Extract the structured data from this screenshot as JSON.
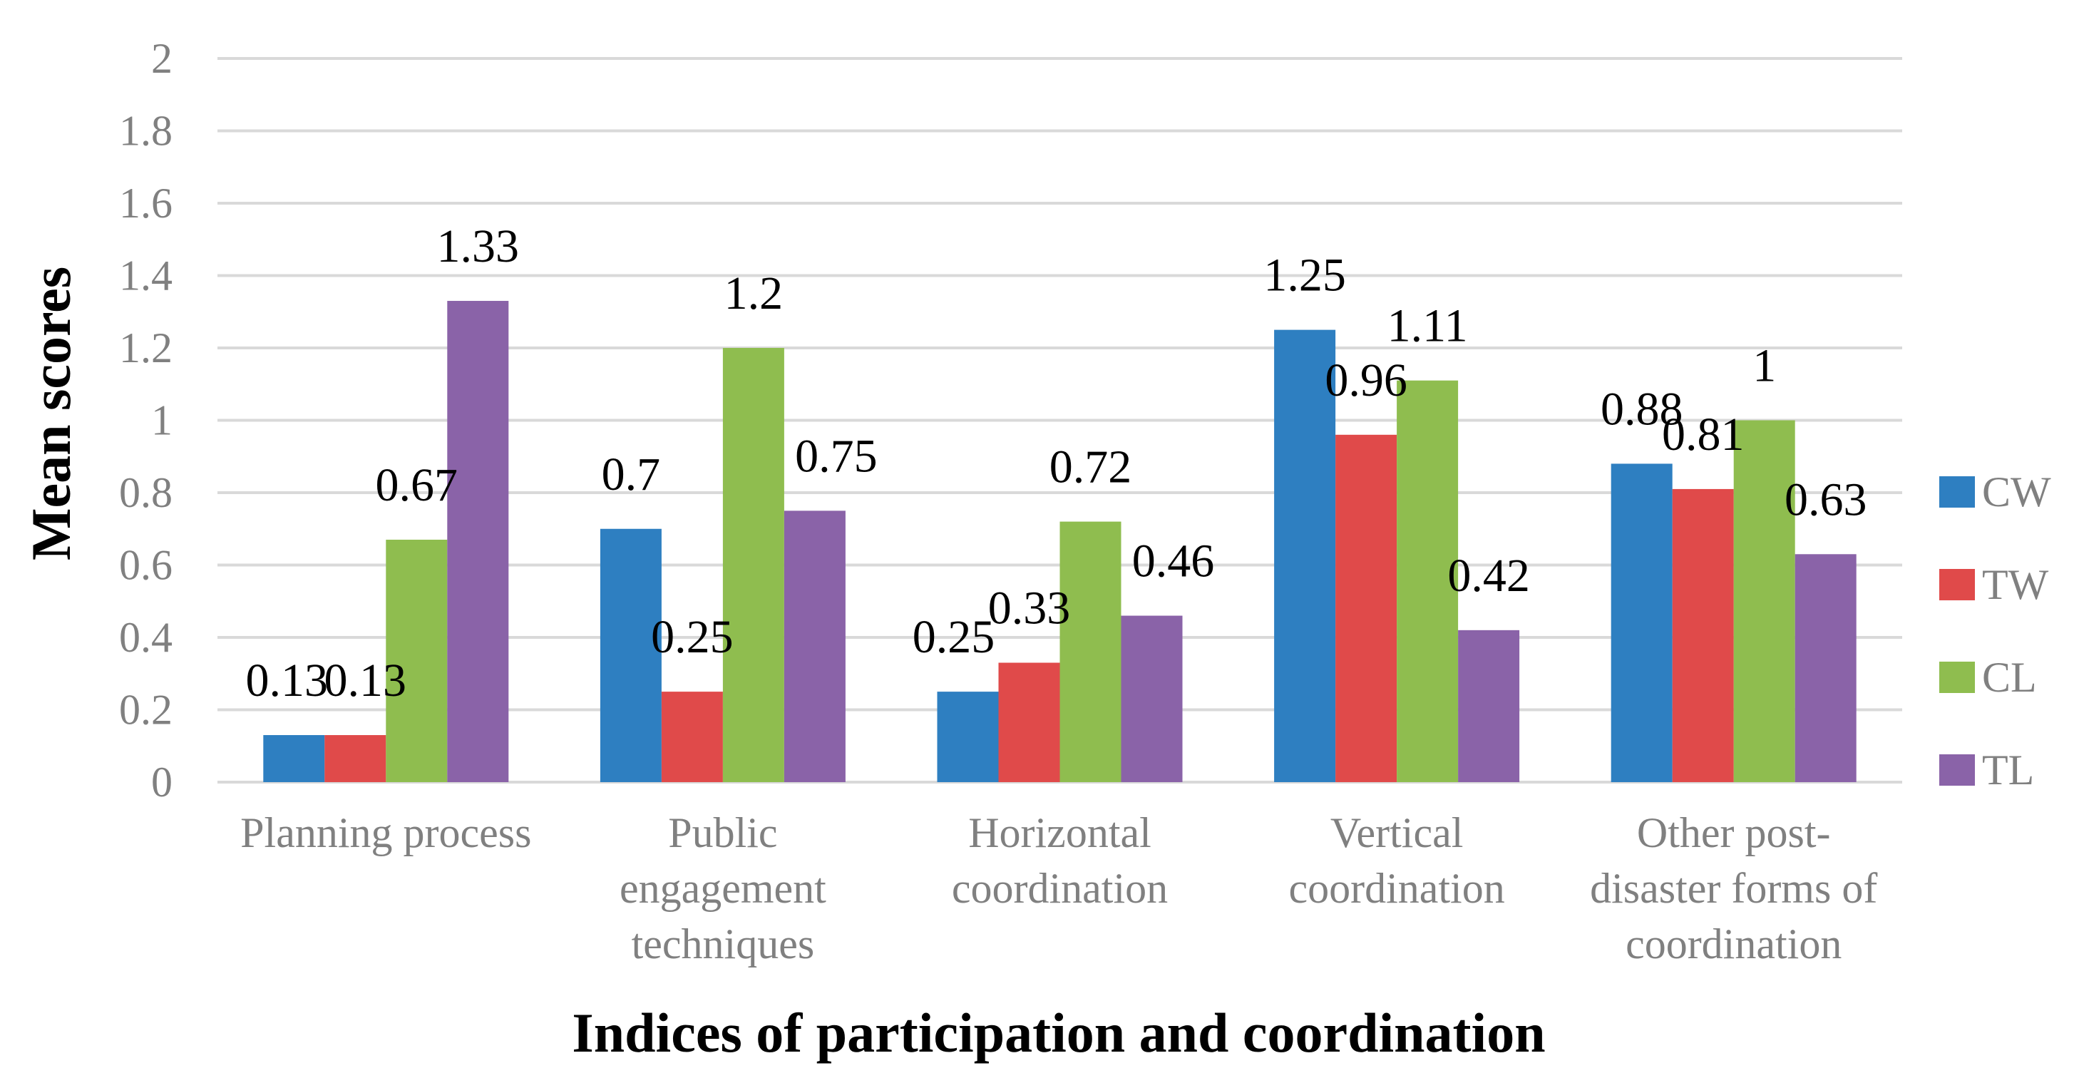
{
  "chart_data": {
    "type": "bar",
    "title": "",
    "xlabel": "Indices of participation and coordination",
    "ylabel": "Mean scores",
    "ylim": [
      0,
      2
    ],
    "yticks": [
      "0",
      "0.2",
      "0.4",
      "0.6",
      "0.8",
      "1",
      "1.2",
      "1.4",
      "1.6",
      "1.8",
      "2"
    ],
    "grid": true,
    "legend_position": "right",
    "categories": [
      [
        "Planning process"
      ],
      [
        "Public",
        "engagement",
        "techniques"
      ],
      [
        "Horizontal",
        "coordination"
      ],
      [
        "Vertical",
        "coordination"
      ],
      [
        "Other post-",
        "disaster forms of",
        "coordination"
      ]
    ],
    "series": [
      {
        "name": "CW",
        "color": "#2e7fc1",
        "values": [
          0.13,
          0.7,
          0.25,
          1.25,
          0.88
        ],
        "labels": [
          "0.13",
          "0.7",
          "0.25",
          "1.25",
          "0.88"
        ]
      },
      {
        "name": "TW",
        "color": "#e04a4a",
        "values": [
          0.13,
          0.25,
          0.33,
          0.96,
          0.81
        ],
        "labels": [
          "0.13",
          "0.25",
          "0.33",
          "0.96",
          "0.81"
        ]
      },
      {
        "name": "CL",
        "color": "#8fbd4f",
        "values": [
          0.67,
          1.2,
          0.72,
          1.11,
          1
        ],
        "labels": [
          "0.67",
          "1.2",
          "0.72",
          "1.11",
          "1"
        ]
      },
      {
        "name": "TL",
        "color": "#8a63a8",
        "values": [
          1.33,
          0.75,
          0.46,
          0.42,
          0.63
        ],
        "labels": [
          "1.33",
          "0.75",
          "0.46",
          "0.42",
          "0.63"
        ]
      }
    ]
  }
}
